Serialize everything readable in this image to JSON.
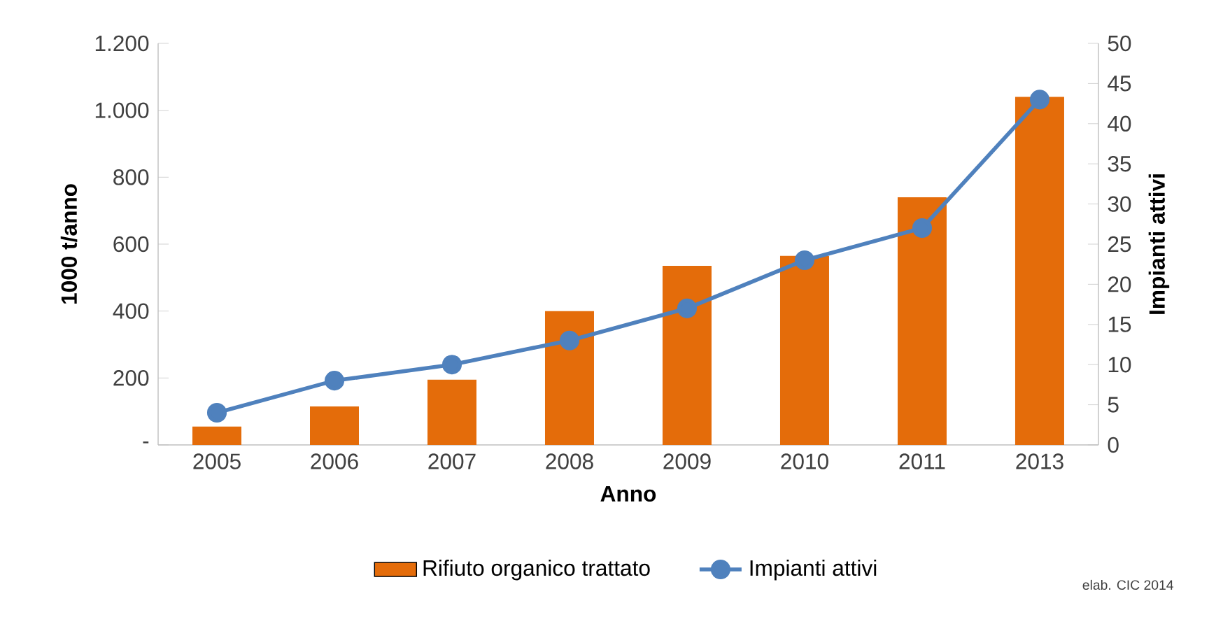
{
  "chart_data": {
    "type": "bar",
    "xlabel": "Anno",
    "ylabel": "1000 t/anno",
    "y2label": "Impianti attivi",
    "categories": [
      "2005",
      "2006",
      "2007",
      "2008",
      "2009",
      "2010",
      "2011",
      "2013"
    ],
    "series": [
      {
        "name": "Rifiuto organico trattato",
        "color": "#e46c0a",
        "values": [
          55,
          115,
          195,
          400,
          535,
          565,
          740,
          1040
        ]
      },
      {
        "name": "Impianti attivi",
        "type": "line",
        "axis": "y2",
        "color": "#4f81bd",
        "values": [
          4,
          8,
          10,
          13,
          17,
          23,
          27,
          43
        ]
      }
    ],
    "ylim": [
      0,
      1200
    ],
    "yticks": [
      {
        "value": 0,
        "label": "-"
      },
      200,
      400,
      600,
      800,
      {
        "value": 1000,
        "label": "1.000"
      },
      {
        "value": 1200,
        "label": "1.200"
      }
    ],
    "y2lim": [
      0,
      50
    ],
    "y2ticks": [
      0,
      5,
      10,
      15,
      20,
      25,
      30,
      35,
      40,
      45,
      50
    ],
    "marker": "circle",
    "legend": "bottom",
    "grid": false,
    "annotations": [
      "elab. CIC 2014"
    ]
  }
}
